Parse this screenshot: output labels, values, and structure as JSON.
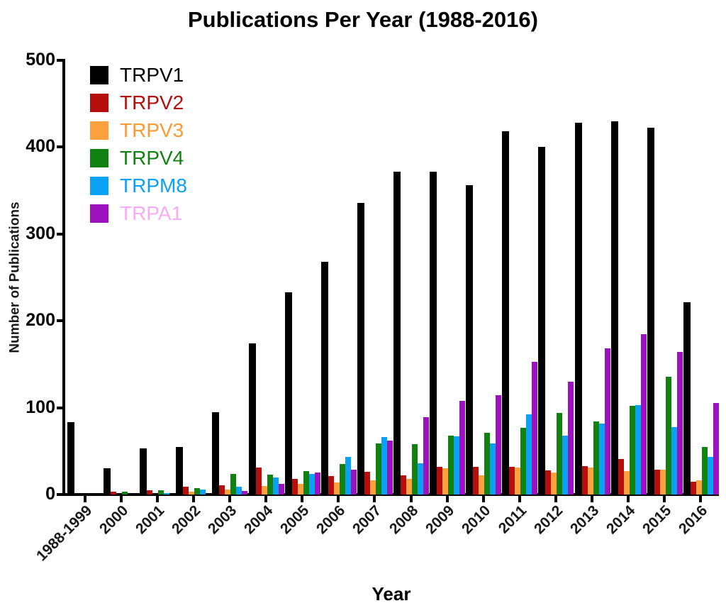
{
  "chart_data": {
    "type": "bar",
    "title": "Publications Per Year (1988-2016)",
    "xlabel": "Year",
    "ylabel": "Number of Publications",
    "ylim": [
      0,
      500
    ],
    "yticks": [
      0,
      100,
      200,
      300,
      400,
      500
    ],
    "grid": false,
    "legend_position": "top-left-inside",
    "categories": [
      "1988-1999",
      "2000",
      "2001",
      "2002",
      "2003",
      "2004",
      "2005",
      "2006",
      "2007",
      "2008",
      "2009",
      "2010",
      "2011",
      "2012",
      "2013",
      "2014",
      "2015",
      "2016"
    ],
    "series": [
      {
        "name": "TRPV1",
        "color": "#000000",
        "label_color": "#000000",
        "values": [
          83,
          30,
          53,
          55,
          95,
          174,
          233,
          268,
          336,
          372,
          372,
          356,
          418,
          400,
          428,
          430,
          422,
          221
        ]
      },
      {
        "name": "TRPV2",
        "color": "#B60D0D",
        "label_color": "#B60D0D",
        "values": [
          0,
          3,
          5,
          9,
          11,
          31,
          18,
          21,
          26,
          22,
          32,
          32,
          32,
          28,
          33,
          41,
          29,
          15
        ]
      },
      {
        "name": "TRPV3",
        "color": "#FCA13E",
        "label_color": "#FC9A33",
        "values": [
          0,
          0,
          0,
          3,
          6,
          10,
          12,
          14,
          16,
          18,
          30,
          22,
          31,
          25,
          31,
          27,
          29,
          16
        ]
      },
      {
        "name": "TRPV4",
        "color": "#118111",
        "label_color": "#118111",
        "values": [
          0,
          3,
          5,
          7,
          24,
          23,
          27,
          35,
          59,
          58,
          68,
          71,
          77,
          94,
          84,
          102,
          136,
          55
        ]
      },
      {
        "name": "TRPM8",
        "color": "#0BA2F5",
        "label_color": "#0BA2F5",
        "values": [
          0,
          0,
          2,
          6,
          9,
          20,
          24,
          43,
          66,
          36,
          67,
          59,
          92,
          68,
          82,
          103,
          78,
          43
        ]
      },
      {
        "name": "TRPA1",
        "color": "#9C12BE",
        "label_color": "#F9ABF5",
        "values": [
          0,
          0,
          0,
          0,
          4,
          12,
          25,
          29,
          62,
          89,
          108,
          114,
          153,
          130,
          168,
          185,
          164,
          105
        ]
      }
    ]
  }
}
